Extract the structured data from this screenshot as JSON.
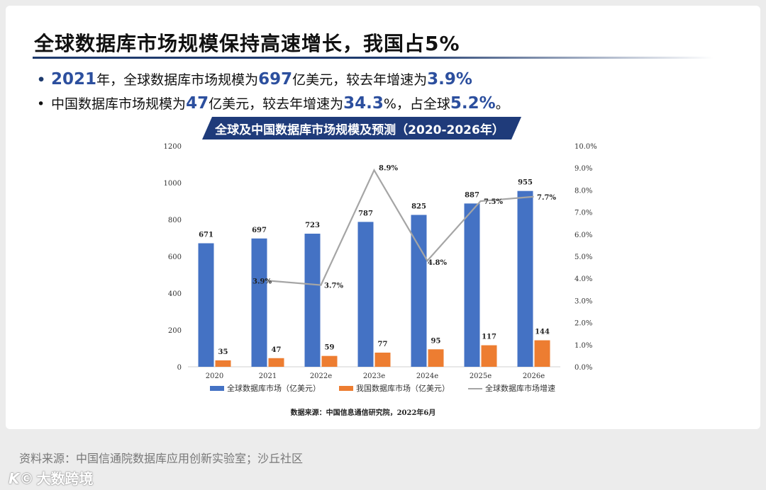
{
  "header": {
    "title": "全球数据库市场规模保持高速增长，我国占5%"
  },
  "bullets": [
    {
      "marker": "•",
      "p1": "2021",
      "p2": "年，全球数据库市场规模为",
      "p3": "697",
      "p4": "亿美元，较去年增速为",
      "p5": "3.9%",
      "p6": ""
    },
    {
      "marker": "•",
      "p1": "",
      "p2": "中国数据库市场规模为",
      "p3": "47",
      "p4": "亿美元，较去年增速为",
      "p5": "34.3",
      "p6": "%，占全球",
      "p7": "5.2%",
      "p8": "。"
    }
  ],
  "chart_title": "全球及中国数据库市场规模及预测（2020-2026年）",
  "chart_source": "数据来源：中国信息通信研究院，2022年6月",
  "footer": {
    "source": "资料来源：中国信通院数据库应用创新实验室；沙丘社区",
    "logo_mark": "K©",
    "logo_text": "大数跨境"
  },
  "colors": {
    "blue_bar": "#4472c4",
    "orange_bar": "#ed7d31",
    "line": "#a5a5a5",
    "title_banner": "#1f3b7a"
  },
  "chart_data": {
    "type": "bar",
    "categories": [
      "2020",
      "2021",
      "2022e",
      "2023e",
      "2024e",
      "2025e",
      "2026e"
    ],
    "series": [
      {
        "name": "全球数据库市场（亿美元）",
        "type": "bar",
        "axis": "left",
        "color": "#4472c4",
        "values": [
          671,
          697,
          723,
          787,
          825,
          887,
          955
        ],
        "labels": [
          "671",
          "697",
          "723",
          "787",
          "825",
          "887",
          "955"
        ]
      },
      {
        "name": "我国数据库市场（亿美元）",
        "type": "bar",
        "axis": "left",
        "color": "#ed7d31",
        "values": [
          35,
          47,
          59,
          77,
          95,
          117,
          144
        ],
        "labels": [
          "35",
          "47",
          "59",
          "77",
          "95",
          "117",
          "144"
        ]
      },
      {
        "name": "全球数据库市场增速",
        "type": "line",
        "axis": "right",
        "color": "#a5a5a5",
        "values": [
          null,
          3.9,
          3.7,
          8.9,
          4.8,
          7.5,
          7.7
        ],
        "labels": [
          "",
          "3.9%",
          "3.7%",
          "8.9%",
          "4.8%",
          "7.5%",
          "7.7%"
        ]
      }
    ],
    "y_left": {
      "range": [
        0,
        1200
      ],
      "ticks": [
        "0",
        "200",
        "400",
        "600",
        "800",
        "1000",
        "1200"
      ]
    },
    "y_right": {
      "range": [
        0,
        10
      ],
      "ticks": [
        "0.0%",
        "1.0%",
        "2.0%",
        "3.0%",
        "4.0%",
        "5.0%",
        "6.0%",
        "7.0%",
        "8.0%",
        "9.0%",
        "10.0%"
      ]
    },
    "grid": false,
    "legend": "bottom"
  }
}
